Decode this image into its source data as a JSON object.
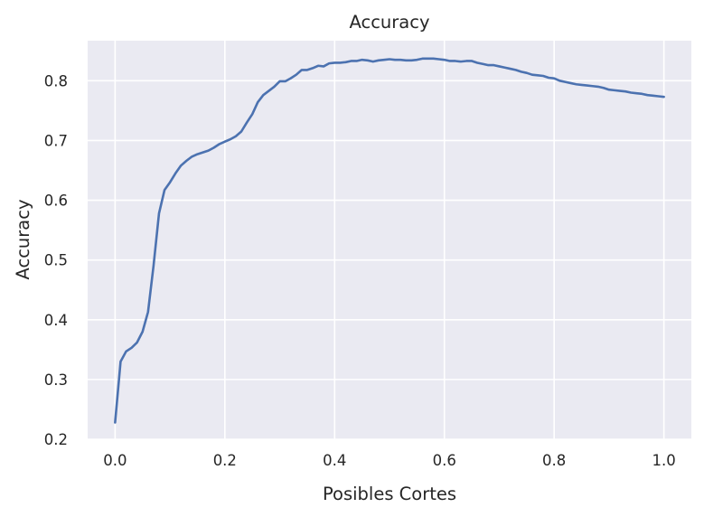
{
  "chart_data": {
    "type": "line",
    "title": "Accuracy",
    "xlabel": "Posibles Cortes",
    "ylabel": "Accuracy",
    "xlim": [
      -0.05,
      1.05
    ],
    "ylim": [
      0.2,
      0.867
    ],
    "xticks": [
      0.0,
      0.2,
      0.4,
      0.6,
      0.8,
      1.0
    ],
    "xtick_labels": [
      "0.0",
      "0.2",
      "0.4",
      "0.6",
      "0.8",
      "1.0"
    ],
    "yticks": [
      0.2,
      0.3,
      0.4,
      0.5,
      0.6,
      0.7,
      0.8
    ],
    "ytick_labels": [
      "0.2",
      "0.3",
      "0.4",
      "0.5",
      "0.6",
      "0.7",
      "0.8"
    ],
    "grid": true,
    "background": "#EAEAF2",
    "line_color": "#4C72B0",
    "series": [
      {
        "x": [
          0.0,
          0.01,
          0.02,
          0.03,
          0.04,
          0.05,
          0.06,
          0.07,
          0.08,
          0.09,
          0.1,
          0.11,
          0.12,
          0.13,
          0.14,
          0.15,
          0.16,
          0.17,
          0.18,
          0.19,
          0.2,
          0.21,
          0.22,
          0.23,
          0.24,
          0.25,
          0.26,
          0.27,
          0.28,
          0.29,
          0.3,
          0.31,
          0.32,
          0.33,
          0.34,
          0.35,
          0.36,
          0.37,
          0.38,
          0.39,
          0.4,
          0.41,
          0.42,
          0.43,
          0.44,
          0.45,
          0.46,
          0.47,
          0.48,
          0.49,
          0.5,
          0.51,
          0.52,
          0.53,
          0.54,
          0.55,
          0.56,
          0.57,
          0.58,
          0.59,
          0.6,
          0.61,
          0.62,
          0.63,
          0.64,
          0.65,
          0.66,
          0.67,
          0.68,
          0.69,
          0.7,
          0.71,
          0.72,
          0.73,
          0.74,
          0.75,
          0.76,
          0.77,
          0.78,
          0.79,
          0.8,
          0.81,
          0.82,
          0.83,
          0.84,
          0.85,
          0.86,
          0.87,
          0.88,
          0.89,
          0.9,
          0.91,
          0.92,
          0.93,
          0.94,
          0.95,
          0.96,
          0.97,
          0.98,
          0.99,
          1.0
        ],
        "y": [
          0.228,
          0.33,
          0.347,
          0.353,
          0.362,
          0.38,
          0.413,
          0.49,
          0.578,
          0.617,
          0.63,
          0.645,
          0.658,
          0.666,
          0.673,
          0.677,
          0.68,
          0.683,
          0.688,
          0.694,
          0.698,
          0.702,
          0.707,
          0.715,
          0.73,
          0.744,
          0.764,
          0.776,
          0.783,
          0.79,
          0.799,
          0.799,
          0.804,
          0.81,
          0.818,
          0.818,
          0.821,
          0.825,
          0.824,
          0.829,
          0.83,
          0.83,
          0.831,
          0.833,
          0.833,
          0.835,
          0.834,
          0.832,
          0.834,
          0.835,
          0.836,
          0.835,
          0.835,
          0.834,
          0.834,
          0.835,
          0.837,
          0.837,
          0.837,
          0.836,
          0.835,
          0.833,
          0.833,
          0.832,
          0.833,
          0.833,
          0.83,
          0.828,
          0.826,
          0.826,
          0.824,
          0.822,
          0.82,
          0.818,
          0.815,
          0.813,
          0.81,
          0.809,
          0.808,
          0.805,
          0.804,
          0.8,
          0.798,
          0.796,
          0.794,
          0.793,
          0.792,
          0.791,
          0.79,
          0.788,
          0.785,
          0.784,
          0.783,
          0.782,
          0.78,
          0.779,
          0.778,
          0.776,
          0.775,
          0.774,
          0.773
        ]
      }
    ]
  }
}
